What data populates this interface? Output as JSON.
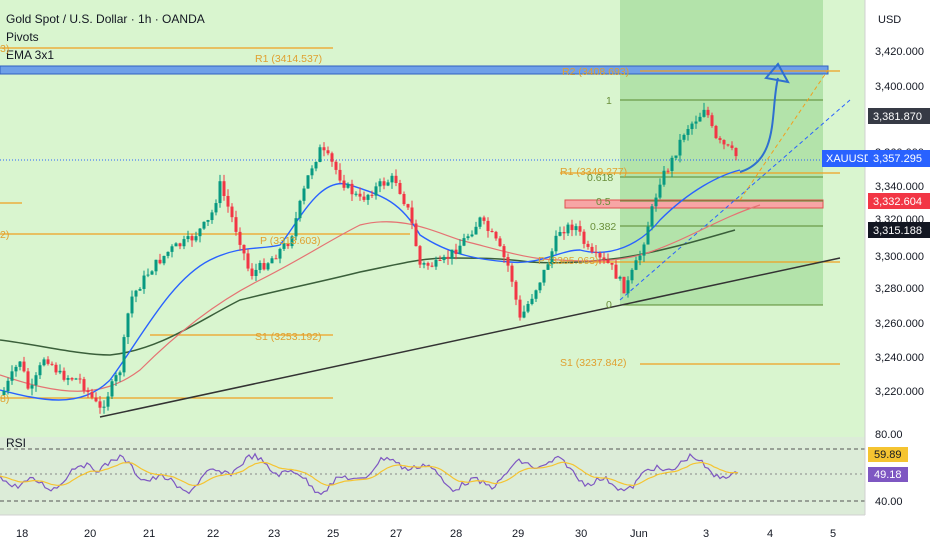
{
  "header": {
    "title": "Gold Spot / U.S. Dollar · 1h · OANDA",
    "indicator_1": "Pivots",
    "indicator_2": "EMA 3x1",
    "currency": "USD"
  },
  "price_axis": {
    "ticks": [
      "3,420.000",
      "3,400.000",
      "3,381.870",
      "3,360.000",
      "3,357.295",
      "3,340.000",
      "3,332.604",
      "3,320.000",
      "3,315.188",
      "3,300.000",
      "3,280.000",
      "3,260.000",
      "3,240.000",
      "3,220.000"
    ],
    "symbol": "XAUUSD"
  },
  "rsi": {
    "label": "RSI",
    "ticks": [
      "80.00",
      "40.00"
    ],
    "value_1": "59.89",
    "value_2": "49.18"
  },
  "time_axis": {
    "labels": [
      "18",
      "20",
      "21",
      "22",
      "23",
      "25",
      "27",
      "28",
      "29",
      "30",
      "Jun",
      "3",
      "4",
      "5"
    ]
  },
  "pivots": {
    "r2_right": "R2 (3408.693)",
    "r1_left": "R1 (3414.537)",
    "r1_right": "R1 (3349.277)",
    "p_left": "P (3313.603)",
    "p_right": "P (3305.063)",
    "s1_left": "S1 (3253.192)",
    "s1_right": "S1 (3237.842)",
    "left_edge_1": "3)",
    "left_edge_2": "2)",
    "left_edge_3": "8)"
  },
  "fib": {
    "l1": "1",
    "l0618": "0.618",
    "l05": "0.5",
    "l0382": "0.382",
    "l0": "0"
  },
  "chart_data": {
    "type": "candlestick",
    "title": "Gold Spot / U.S. Dollar · 1h · OANDA",
    "x_labels": [
      "18",
      "20",
      "21",
      "22",
      "23",
      "25",
      "27",
      "28",
      "29",
      "30",
      "Jun",
      "3",
      "4",
      "5"
    ],
    "ylim": [
      3200,
      3430
    ],
    "last_price": 3357.295,
    "price_tags": [
      3381.87,
      3357.295,
      3332.604,
      3315.188
    ],
    "pivot_levels": {
      "previous_week": {
        "R1": 3414.537,
        "P": 3313.603,
        "S1": 3253.192
      },
      "current_week": {
        "R2": 3408.693,
        "R1": 3349.277,
        "P": 3305.063,
        "S1": 3237.842
      }
    },
    "fibonacci": [
      1,
      0.618,
      0.5,
      0.382,
      0
    ],
    "rsi": {
      "upper_band": 80.0,
      "lower_band": 40.0,
      "value": 49.18,
      "signal": 59.89
    },
    "colors": {
      "up": "#089981",
      "down": "#f23645",
      "ema_fast": "#2962ff",
      "ema_mid": "#e57373",
      "ema_slow": "#3a5f3a",
      "pivot": "#f0a020",
      "background": "#d9f5cf"
    }
  }
}
